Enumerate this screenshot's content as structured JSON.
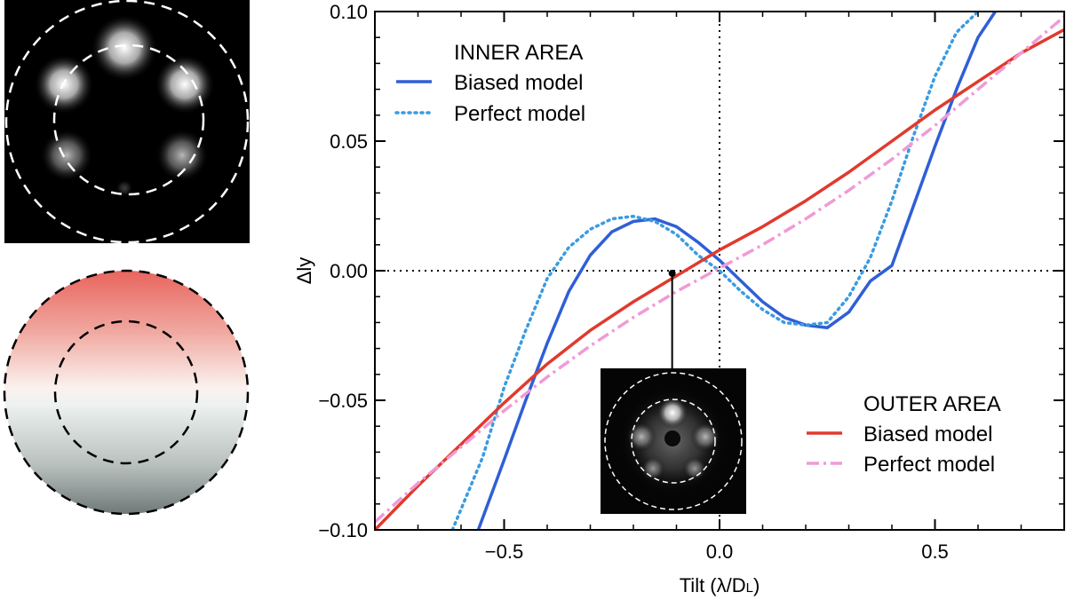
{
  "chart_data": {
    "type": "line",
    "xlabel": "Tilt (λ/D",
    "xlabel_sub": "L",
    "xlabel_close": ")",
    "ylabel": "Δly",
    "xlim": [
      -0.8,
      0.8
    ],
    "ylim": [
      -0.1,
      0.1
    ],
    "xticks": [
      -0.5,
      0.0,
      0.5
    ],
    "yticks": [
      -0.1,
      -0.05,
      0.0,
      0.05,
      0.1
    ],
    "xtick_labels": [
      "−0.5",
      "0.0",
      "0.5"
    ],
    "ytick_labels": [
      "−0.10",
      "−0.05",
      "0.00",
      "0.05",
      "0.10"
    ],
    "reference_lines": {
      "x": 0.0,
      "y": 0.0,
      "style": "dotted"
    },
    "legends": [
      {
        "title": "INNER AREA",
        "placement": "top-left",
        "entries": [
          {
            "label": "Biased model",
            "series": "inner_biased"
          },
          {
            "label": "Perfect model",
            "series": "inner_perfect"
          }
        ]
      },
      {
        "title": "OUTER AREA",
        "placement": "bottom-right",
        "entries": [
          {
            "label": "Biased model",
            "series": "outer_biased"
          },
          {
            "label": "Perfect model",
            "series": "outer_perfect"
          }
        ]
      }
    ],
    "series": [
      {
        "id": "inner_biased",
        "name": "Biased model",
        "group": "INNER AREA",
        "color": "#2f5fd6",
        "style": "solid",
        "x": [
          -0.56,
          -0.5,
          -0.45,
          -0.4,
          -0.35,
          -0.3,
          -0.25,
          -0.2,
          -0.15,
          -0.1,
          -0.05,
          0.0,
          0.05,
          0.1,
          0.15,
          0.2,
          0.25,
          0.3,
          0.35,
          0.4,
          0.45,
          0.5,
          0.55,
          0.6,
          0.64
        ],
        "y": [
          -0.1,
          -0.073,
          -0.05,
          -0.028,
          -0.008,
          0.006,
          0.015,
          0.019,
          0.02,
          0.017,
          0.011,
          0.004,
          -0.004,
          -0.012,
          -0.018,
          -0.021,
          -0.022,
          -0.016,
          -0.004,
          0.002,
          0.025,
          0.048,
          0.07,
          0.09,
          0.1
        ]
      },
      {
        "id": "inner_perfect",
        "name": "Perfect model",
        "group": "INNER AREA",
        "color": "#3a9be0",
        "style": "dotted",
        "x": [
          -0.62,
          -0.55,
          -0.5,
          -0.45,
          -0.4,
          -0.35,
          -0.3,
          -0.25,
          -0.2,
          -0.15,
          -0.1,
          -0.05,
          0.0,
          0.05,
          0.1,
          0.15,
          0.2,
          0.25,
          0.3,
          0.35,
          0.4,
          0.45,
          0.5,
          0.55,
          0.6
        ],
        "y": [
          -0.1,
          -0.072,
          -0.045,
          -0.023,
          -0.003,
          0.009,
          0.016,
          0.02,
          0.021,
          0.019,
          0.014,
          0.006,
          0.0,
          -0.008,
          -0.015,
          -0.02,
          -0.021,
          -0.02,
          -0.01,
          0.005,
          0.027,
          0.052,
          0.075,
          0.092,
          0.1
        ]
      },
      {
        "id": "outer_biased",
        "name": "Biased model",
        "group": "OUTER AREA",
        "color": "#e03a2e",
        "style": "solid",
        "x": [
          -0.8,
          -0.7,
          -0.6,
          -0.5,
          -0.4,
          -0.3,
          -0.2,
          -0.1,
          0.0,
          0.1,
          0.2,
          0.3,
          0.4,
          0.5,
          0.6,
          0.7,
          0.8
        ],
        "y": [
          -0.1,
          -0.083,
          -0.067,
          -0.051,
          -0.036,
          -0.023,
          -0.012,
          -0.002,
          0.008,
          0.017,
          0.027,
          0.038,
          0.05,
          0.062,
          0.073,
          0.084,
          0.093
        ]
      },
      {
        "id": "outer_perfect",
        "name": "Perfect model",
        "group": "OUTER AREA",
        "color": "#f09ad6",
        "style": "dashdot",
        "x": [
          -0.8,
          -0.7,
          -0.6,
          -0.5,
          -0.4,
          -0.3,
          -0.2,
          -0.1,
          0.0,
          0.1,
          0.2,
          0.3,
          0.4,
          0.5,
          0.6,
          0.7,
          0.8
        ],
        "y": [
          -0.097,
          -0.082,
          -0.068,
          -0.054,
          -0.041,
          -0.029,
          -0.018,
          -0.008,
          0.001,
          0.01,
          0.02,
          0.031,
          0.043,
          0.056,
          0.07,
          0.084,
          0.098
        ]
      }
    ],
    "annotation": {
      "x": -0.11,
      "y": -0.001,
      "note": "pointer to inset PSF image"
    }
  }
}
